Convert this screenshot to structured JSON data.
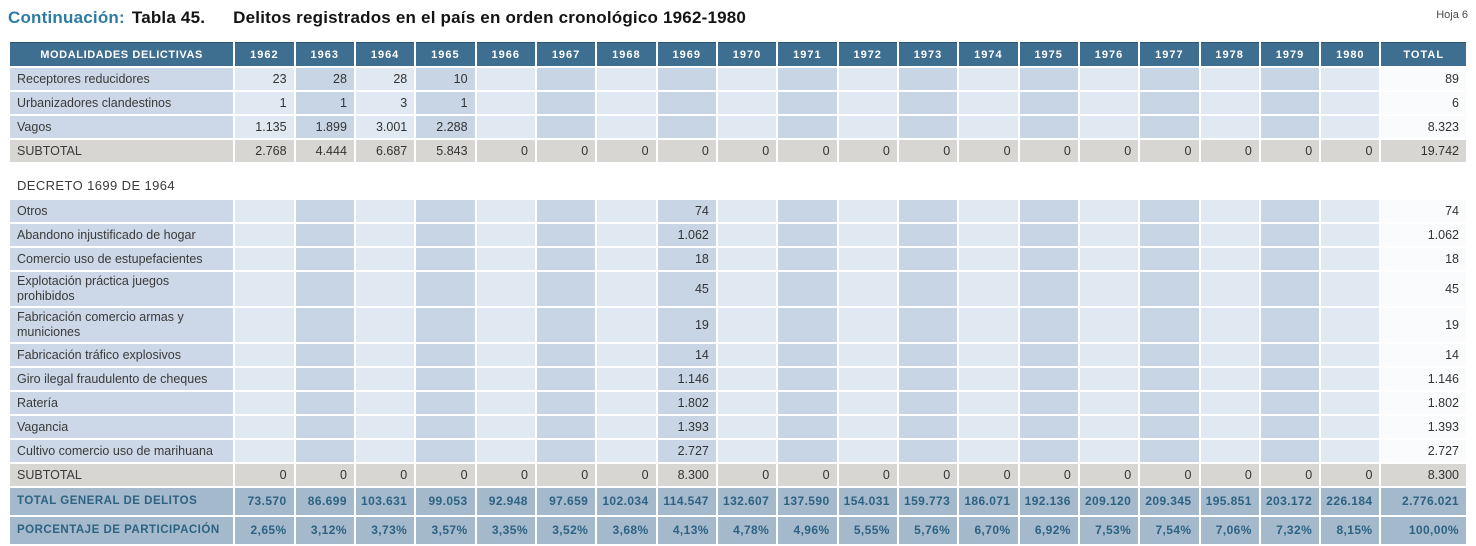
{
  "header": {
    "continuation_label": "Continuación:",
    "table_label": "Tabla 45.",
    "title": "Delitos registrados en el país en orden cronológico 1962-1980",
    "sheet_label": "Hoja 6"
  },
  "colors": {
    "header_bg": "#3e6e90",
    "label_cell_bg": "#ccd8e7",
    "column_light": "#e0e8f1",
    "column_dark": "#c7d5e5",
    "total_column_bg": "#fafbfd",
    "subtotal_row_bg": "#d7d6d3",
    "grand_total_row_bg": "#a4b9cc",
    "grand_total_text": "#2d6283",
    "title_accent": "#2e7ca3"
  },
  "table": {
    "first_column_header": "MODALIDADES DELICTIVAS",
    "year_headers": [
      "1962",
      "1963",
      "1964",
      "1965",
      "1966",
      "1967",
      "1968",
      "1969",
      "1970",
      "1971",
      "1972",
      "1973",
      "1974",
      "1975",
      "1976",
      "1977",
      "1978",
      "1979",
      "1980"
    ],
    "total_header": "TOTAL",
    "rows": [
      {
        "type": "data",
        "label": "Receptores reducidores",
        "values": [
          "23",
          "28",
          "28",
          "10",
          "",
          "",
          "",
          "",
          "",
          "",
          "",
          "",
          "",
          "",
          "",
          "",
          "",
          "",
          ""
        ],
        "total": "89"
      },
      {
        "type": "data",
        "label": "Urbanizadores clandestinos",
        "values": [
          "1",
          "1",
          "3",
          "1",
          "",
          "",
          "",
          "",
          "",
          "",
          "",
          "",
          "",
          "",
          "",
          "",
          "",
          "",
          ""
        ],
        "total": "6"
      },
      {
        "type": "data",
        "label": "Vagos",
        "values": [
          "1.135",
          "1.899",
          "3.001",
          "2.288",
          "",
          "",
          "",
          "",
          "",
          "",
          "",
          "",
          "",
          "",
          "",
          "",
          "",
          "",
          ""
        ],
        "total": "8.323"
      },
      {
        "type": "subtotal",
        "label": "SUBTOTAL",
        "values": [
          "2.768",
          "4.444",
          "6.687",
          "5.843",
          "0",
          "0",
          "0",
          "0",
          "0",
          "0",
          "0",
          "0",
          "0",
          "0",
          "0",
          "0",
          "0",
          "0",
          "0"
        ],
        "total": "19.742"
      },
      {
        "type": "section",
        "label": "DECRETO 1699  DE 1964"
      },
      {
        "type": "data",
        "label": "Otros",
        "values": [
          "",
          "",
          "",
          "",
          "",
          "",
          "",
          "74",
          "",
          "",
          "",
          "",
          "",
          "",
          "",
          "",
          "",
          "",
          ""
        ],
        "total": "74"
      },
      {
        "type": "data",
        "label": "Abandono injustificado de hogar",
        "values": [
          "",
          "",
          "",
          "",
          "",
          "",
          "",
          "1.062",
          "",
          "",
          "",
          "",
          "",
          "",
          "",
          "",
          "",
          "",
          ""
        ],
        "total": "1.062"
      },
      {
        "type": "data",
        "label": "Comercio uso de estupefacientes",
        "values": [
          "",
          "",
          "",
          "",
          "",
          "",
          "",
          "18",
          "",
          "",
          "",
          "",
          "",
          "",
          "",
          "",
          "",
          "",
          ""
        ],
        "total": "18"
      },
      {
        "type": "data",
        "label": "Explotación práctica juegos prohibidos",
        "values": [
          "",
          "",
          "",
          "",
          "",
          "",
          "",
          "45",
          "",
          "",
          "",
          "",
          "",
          "",
          "",
          "",
          "",
          "",
          ""
        ],
        "total": "45"
      },
      {
        "type": "data",
        "label": "Fabricación comercio armas y municiones",
        "values": [
          "",
          "",
          "",
          "",
          "",
          "",
          "",
          "19",
          "",
          "",
          "",
          "",
          "",
          "",
          "",
          "",
          "",
          "",
          ""
        ],
        "total": "19"
      },
      {
        "type": "data",
        "label": "Fabricación tráfico explosivos",
        "values": [
          "",
          "",
          "",
          "",
          "",
          "",
          "",
          "14",
          "",
          "",
          "",
          "",
          "",
          "",
          "",
          "",
          "",
          "",
          ""
        ],
        "total": "14"
      },
      {
        "type": "data",
        "label": "Giro ilegal fraudulento de cheques",
        "values": [
          "",
          "",
          "",
          "",
          "",
          "",
          "",
          "1.146",
          "",
          "",
          "",
          "",
          "",
          "",
          "",
          "",
          "",
          "",
          ""
        ],
        "total": "1.146"
      },
      {
        "type": "data",
        "label": "Ratería",
        "values": [
          "",
          "",
          "",
          "",
          "",
          "",
          "",
          "1.802",
          "",
          "",
          "",
          "",
          "",
          "",
          "",
          "",
          "",
          "",
          ""
        ],
        "total": "1.802"
      },
      {
        "type": "data",
        "label": "Vagancia",
        "values": [
          "",
          "",
          "",
          "",
          "",
          "",
          "",
          "1.393",
          "",
          "",
          "",
          "",
          "",
          "",
          "",
          "",
          "",
          "",
          ""
        ],
        "total": "1.393"
      },
      {
        "type": "data",
        "label": "Cultivo comercio uso de marihuana",
        "values": [
          "",
          "",
          "",
          "",
          "",
          "",
          "",
          "2.727",
          "",
          "",
          "",
          "",
          "",
          "",
          "",
          "",
          "",
          "",
          ""
        ],
        "total": "2.727"
      },
      {
        "type": "subtotal",
        "label": "SUBTOTAL",
        "values": [
          "0",
          "0",
          "0",
          "0",
          "0",
          "0",
          "0",
          "8.300",
          "0",
          "0",
          "0",
          "0",
          "0",
          "0",
          "0",
          "0",
          "0",
          "0",
          "0"
        ],
        "total": "8.300"
      },
      {
        "type": "grand",
        "label": "TOTAL GENERAL DE DELITOS",
        "values": [
          "73.570",
          "86.699",
          "103.631",
          "99.053",
          "92.948",
          "97.659",
          "102.034",
          "114.547",
          "132.607",
          "137.590",
          "154.031",
          "159.773",
          "186.071",
          "192.136",
          "209.120",
          "209.345",
          "195.851",
          "203.172",
          "226.184"
        ],
        "total": "2.776.021"
      },
      {
        "type": "grand",
        "label": "PORCENTAJE DE PARTICIPACIÓN",
        "values": [
          "2,65%",
          "3,12%",
          "3,73%",
          "3,57%",
          "3,35%",
          "3,52%",
          "3,68%",
          "4,13%",
          "4,78%",
          "4,96%",
          "5,55%",
          "5,76%",
          "6,70%",
          "6,92%",
          "7,53%",
          "7,54%",
          "7,06%",
          "7,32%",
          "8,15%"
        ],
        "total": "100,00%"
      }
    ]
  }
}
